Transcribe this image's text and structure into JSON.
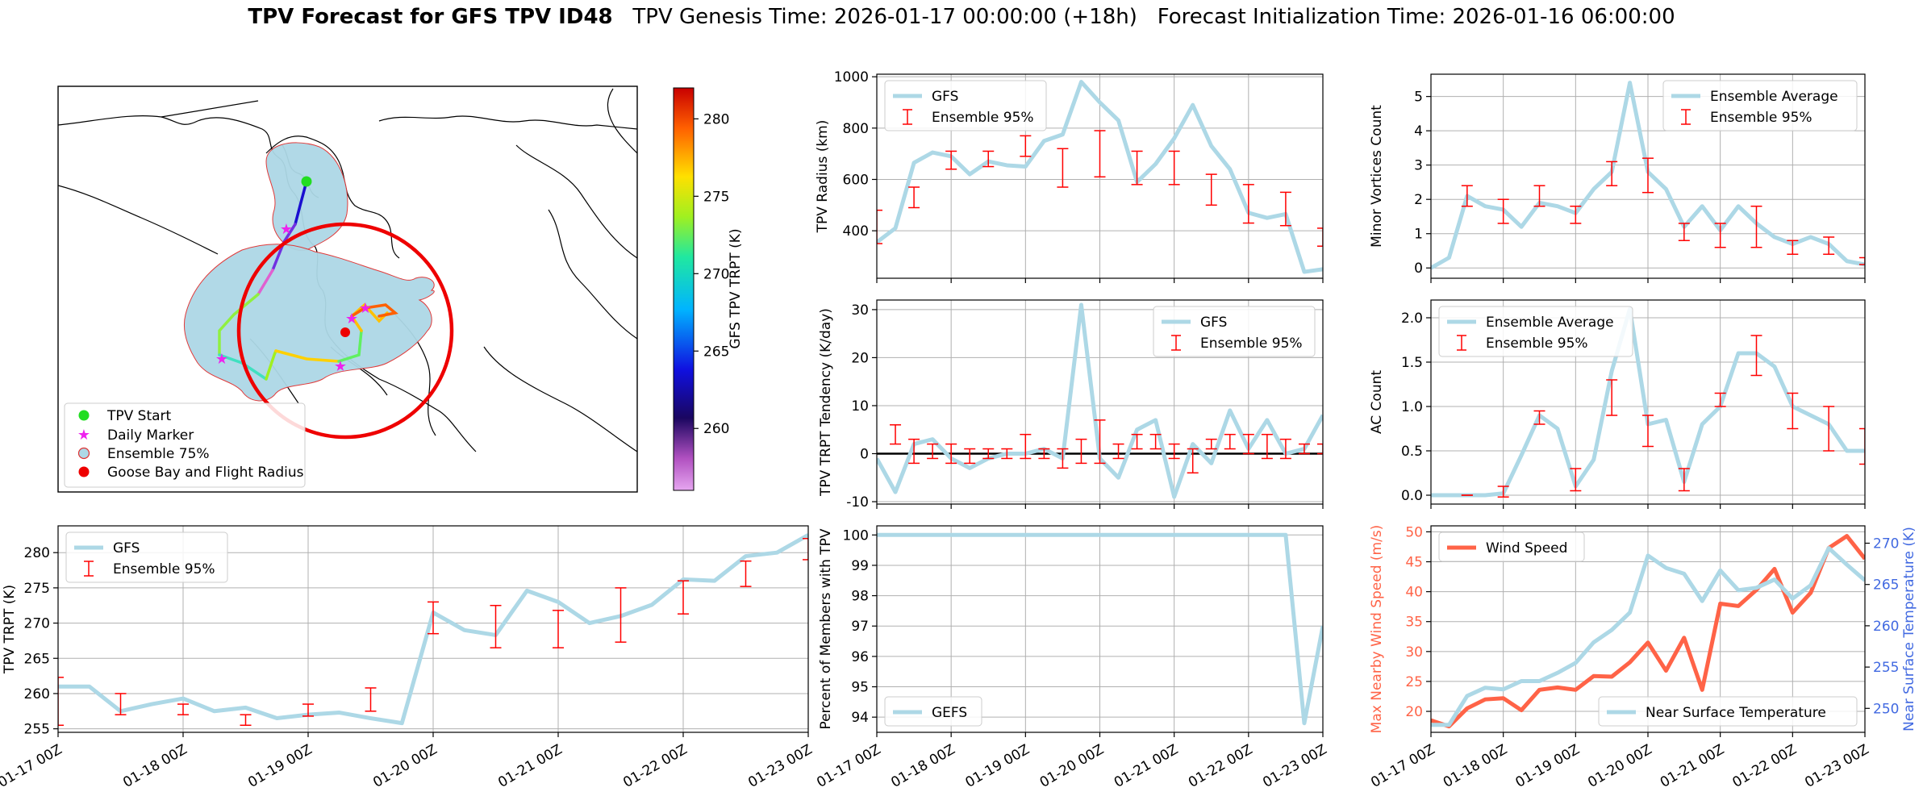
{
  "header": {
    "title_bold": "TPV Forecast for GFS TPV ID48",
    "genesis": "TPV Genesis Time: 2026-01-17 00:00:00 (+18h)",
    "init": "Forecast Initialization Time: 2026-01-16 06:00:00"
  },
  "map": {
    "colorbar_label": "GFS TPV TRPT (K)",
    "colorbar_ticks": [
      260,
      265,
      270,
      275,
      280
    ],
    "colorbar_range": [
      256,
      282
    ],
    "legend": [
      "TPV Start",
      "Daily Marker",
      "Ensemble 75%",
      "Goose Bay and Flight Radius"
    ],
    "colors": {
      "start": "#22dd22",
      "marker": "#ee22ee",
      "ensemble": "#add8e6",
      "goose": "#ee0000"
    }
  },
  "chart_data": [
    {
      "id": "radius",
      "type": "line",
      "ylabel": "TPV Radius (km)",
      "ylim": [
        215,
        1010
      ],
      "yticks": [
        400,
        600,
        800,
        1000
      ],
      "xlim": [
        0,
        24
      ],
      "x": [
        0,
        1,
        2,
        3,
        4,
        5,
        6,
        7,
        8,
        9,
        10,
        11,
        12,
        13,
        14,
        15,
        16,
        17,
        18,
        19,
        20,
        21,
        22,
        23,
        24
      ],
      "values": [
        355,
        410,
        665,
        705,
        690,
        620,
        670,
        655,
        650,
        750,
        775,
        980,
        900,
        830,
        590,
        660,
        760,
        890,
        730,
        640,
        470,
        450,
        465,
        240,
        250
      ],
      "err_x": [
        0,
        2,
        4,
        6,
        8,
        10,
        12,
        14,
        16,
        18,
        20,
        22,
        24
      ],
      "err_lo": [
        350,
        490,
        640,
        650,
        690,
        570,
        610,
        580,
        580,
        500,
        430,
        420,
        340
      ],
      "err_hi": [
        480,
        570,
        710,
        710,
        770,
        720,
        790,
        710,
        710,
        620,
        580,
        550,
        410
      ],
      "legend": [
        "GFS",
        "Ensemble 95%"
      ],
      "legend_pos": "top-left",
      "show_xticklabels": false
    },
    {
      "id": "tendency",
      "type": "line",
      "ylabel": "TPV TRPT Tendency (K/day)",
      "ylim": [
        -10.5,
        32
      ],
      "yticks": [
        -10,
        0,
        10,
        20,
        30
      ],
      "xlim": [
        0,
        24
      ],
      "zero_line": true,
      "x": [
        0,
        1,
        2,
        3,
        4,
        5,
        6,
        7,
        8,
        9,
        10,
        11,
        12,
        13,
        14,
        15,
        16,
        17,
        18,
        19,
        20,
        21,
        22,
        23,
        24
      ],
      "values": [
        -1,
        -8,
        2,
        3,
        -1,
        -3,
        -1,
        0,
        0,
        1,
        -1,
        31,
        -1,
        -5,
        5,
        7,
        -9,
        2,
        -2,
        9,
        1,
        7,
        0,
        1,
        8
      ],
      "err_x": [
        1,
        2,
        3,
        4,
        5,
        6,
        7,
        8,
        9,
        10,
        11,
        12,
        13,
        14,
        15,
        16,
        17,
        18,
        19,
        20,
        21,
        22,
        23,
        24
      ],
      "err_lo": [
        2,
        -2,
        -1,
        -2,
        -2,
        -1,
        -1,
        -1,
        -1,
        -3,
        -2,
        -2,
        -1,
        1,
        1,
        -1,
        -4,
        1,
        1,
        0,
        -1,
        -1,
        0,
        0
      ],
      "err_hi": [
        6,
        3,
        2,
        2,
        1,
        1,
        1,
        4,
        1,
        1,
        3,
        7,
        2,
        4,
        4,
        2,
        1,
        3,
        4,
        4,
        4,
        3,
        2,
        2
      ],
      "legend": [
        "GFS",
        "Ensemble 95%"
      ],
      "legend_pos": "top-right",
      "show_xticklabels": false
    },
    {
      "id": "members",
      "type": "line",
      "ylabel": "Percent of Members with TPV",
      "ylim": [
        93.5,
        100.3
      ],
      "yticks": [
        94,
        95,
        96,
        97,
        98,
        99,
        100
      ],
      "xlim": [
        0,
        24
      ],
      "x": [
        0,
        22,
        23,
        24
      ],
      "values": [
        100,
        100,
        93.8,
        97
      ],
      "legend": [
        "GEFS"
      ],
      "legend_pos": "bottom-left",
      "show_xticklabels": true
    },
    {
      "id": "trpt",
      "type": "line",
      "ylabel": "TPV TRPT (K)",
      "ylim": [
        254.5,
        283.8
      ],
      "yticks": [
        255,
        260,
        265,
        270,
        275,
        280
      ],
      "xlim": [
        0,
        24
      ],
      "x": [
        0,
        1,
        2,
        3,
        4,
        5,
        6,
        7,
        8,
        9,
        10,
        11,
        12,
        13,
        14,
        15,
        16,
        17,
        18,
        19,
        20,
        21,
        22,
        23,
        24
      ],
      "values": [
        261,
        261,
        257.5,
        258.5,
        259.3,
        257.5,
        258,
        256.5,
        257,
        257.3,
        256.5,
        255.8,
        271.5,
        269,
        268.3,
        274.6,
        273,
        270,
        271,
        272.6,
        276.2,
        276,
        279.5,
        280,
        282.5
      ],
      "err_x": [
        0,
        2,
        4,
        6,
        8,
        10,
        12,
        14,
        16,
        18,
        20,
        22,
        24
      ],
      "err_lo": [
        255.5,
        257,
        257,
        255.5,
        256.8,
        257.5,
        268.5,
        266.5,
        266.5,
        267.3,
        271.3,
        275.2,
        279
      ],
      "err_hi": [
        262.3,
        260,
        258.5,
        257,
        258.5,
        260.8,
        273,
        272.5,
        271.8,
        275,
        276,
        278.8,
        282
      ],
      "legend": [
        "GFS",
        "Ensemble 95%"
      ],
      "legend_pos": "top-left",
      "show_xticklabels": true
    },
    {
      "id": "minor",
      "type": "line",
      "ylabel": "Minor Vortices Count",
      "ylim": [
        -0.3,
        5.65
      ],
      "yticks": [
        0,
        1,
        2,
        3,
        4,
        5
      ],
      "xlim": [
        0,
        24
      ],
      "x": [
        0,
        1,
        2,
        3,
        4,
        5,
        6,
        7,
        8,
        9,
        10,
        11,
        12,
        13,
        14,
        15,
        16,
        17,
        18,
        19,
        20,
        21,
        22,
        23,
        24
      ],
      "values": [
        0,
        0.3,
        2.1,
        1.8,
        1.7,
        1.2,
        1.9,
        1.8,
        1.6,
        2.3,
        2.8,
        5.4,
        2.8,
        2.3,
        1.2,
        1.8,
        1.1,
        1.8,
        1.3,
        0.9,
        0.7,
        0.9,
        0.7,
        0.2,
        0.1
      ],
      "err_x": [
        2,
        4,
        6,
        8,
        10,
        12,
        14,
        16,
        18,
        20,
        22,
        24
      ],
      "err_lo": [
        1.8,
        1.3,
        1.8,
        1.3,
        2.4,
        2.2,
        0.8,
        0.6,
        0.6,
        0.4,
        0.4,
        0.1
      ],
      "err_hi": [
        2.4,
        2.0,
        2.4,
        1.8,
        3.1,
        3.2,
        1.3,
        1.3,
        1.8,
        0.8,
        0.9,
        0.3
      ],
      "legend": [
        "Ensemble Average",
        "Ensemble 95%"
      ],
      "legend_pos": "top-right",
      "show_xticklabels": false
    },
    {
      "id": "ac",
      "type": "line",
      "ylabel": "AC Count",
      "ylim": [
        -0.1,
        2.2
      ],
      "yticks": [
        0.0,
        0.5,
        1.0,
        1.5,
        2.0
      ],
      "xlim": [
        0,
        24
      ],
      "x": [
        0,
        1,
        2,
        3,
        4,
        5,
        6,
        7,
        8,
        9,
        10,
        11,
        12,
        13,
        14,
        15,
        16,
        17,
        18,
        19,
        20,
        21,
        22,
        23,
        24
      ],
      "values": [
        0,
        0,
        0,
        0,
        0.02,
        0.45,
        0.9,
        0.75,
        0.1,
        0.4,
        1.4,
        2.1,
        0.8,
        0.85,
        0.15,
        0.8,
        1.0,
        1.6,
        1.6,
        1.45,
        1.0,
        0.9,
        0.8,
        0.5,
        0.5
      ],
      "err_x": [
        2,
        4,
        6,
        8,
        10,
        12,
        14,
        16,
        18,
        20,
        22,
        24
      ],
      "err_lo": [
        0,
        -0.02,
        0.8,
        0.05,
        0.9,
        0.55,
        0.05,
        1.0,
        1.35,
        0.75,
        0.5,
        0.35
      ],
      "err_hi": [
        0,
        0.1,
        0.95,
        0.3,
        1.3,
        0.9,
        0.3,
        1.15,
        1.8,
        1.15,
        1.0,
        0.75
      ],
      "legend": [
        "Ensemble Average",
        "Ensemble 95%"
      ],
      "legend_pos": "top-left",
      "show_xticklabels": false
    },
    {
      "id": "wind",
      "type": "line",
      "ylabel": "Max Nearby Wind Speed (m/s)",
      "ylabel_right": "Near Surface Temperature (K)",
      "ylim": [
        16.5,
        51
      ],
      "yticks": [
        20,
        25,
        30,
        35,
        40,
        45,
        50
      ],
      "ylim_right": [
        247.1,
        272.1
      ],
      "yticks_right": [
        250,
        255,
        260,
        265,
        270
      ],
      "xlim": [
        0,
        24
      ],
      "x": [
        0,
        1,
        2,
        3,
        4,
        5,
        6,
        7,
        8,
        9,
        10,
        11,
        12,
        13,
        14,
        15,
        16,
        17,
        18,
        19,
        20,
        21,
        22,
        23,
        24
      ],
      "values": [
        18.5,
        17.5,
        20.5,
        22,
        22.2,
        20.2,
        23.6,
        24,
        23.6,
        25.9,
        25.8,
        28.2,
        31.5,
        26.8,
        32.3,
        23.6,
        38,
        37.6,
        40.3,
        43.8,
        36.5,
        39.8,
        47.3,
        49.3,
        45.5
      ],
      "values_right": [
        248,
        248,
        251.5,
        252.5,
        252.3,
        253.3,
        253.3,
        254.3,
        255.5,
        258,
        259.5,
        261.6,
        268.5,
        267,
        266.3,
        263,
        266.7,
        264.3,
        264.6,
        265.6,
        263.3,
        264.9,
        269.4,
        267.4,
        265.5
      ],
      "legend": [
        "Wind Speed"
      ],
      "legend_right": [
        "Near Surface Temperature"
      ],
      "legend_pos": "top-left",
      "legend_right_pos": "bottom-right",
      "show_xticklabels": true
    }
  ],
  "xtick_labels": [
    "01-17 00Z",
    "01-18 00Z",
    "01-19 00Z",
    "01-20 00Z",
    "01-21 00Z",
    "01-22 00Z",
    "01-23 00Z"
  ],
  "colors": {
    "line": "#add8e6",
    "error": "#ff0000",
    "wind": "#ff6347",
    "temp_axis": "#4169e1",
    "zero": "#000000",
    "grid": "#b0b0b0"
  }
}
